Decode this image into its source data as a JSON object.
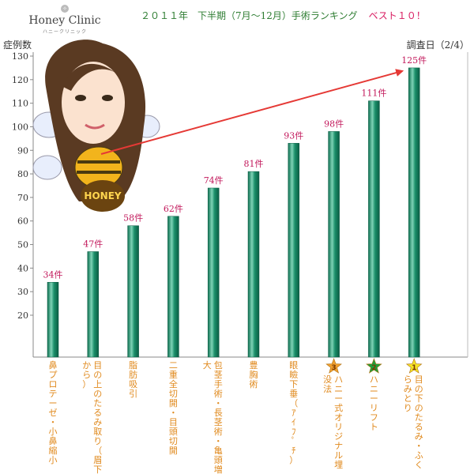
{
  "header": {
    "logo_name": "Honey Clinic",
    "logo_sub": "ハニークリニック",
    "title": "２０１１年　下半期（7月～12月）手術ランキング",
    "title_best": "ベスト１０！"
  },
  "colors": {
    "bar_fill": "#1b8f6a",
    "bar_highlight": "#7fd3b6",
    "value_label": "#c2185b",
    "category_label": "#e08a1e",
    "arrow": "#e53935",
    "star_gold": "#f4e425",
    "star_green": "#1e9e3a",
    "star_orange": "#f0a030"
  },
  "chart_data": {
    "type": "bar",
    "ylabel": "症例数",
    "annotation_top_right": "調査日（2/4）",
    "ylim": [
      0,
      130
    ],
    "yticks": [
      20,
      30,
      40,
      50,
      60,
      70,
      80,
      90,
      100,
      110,
      120,
      130
    ],
    "categories": [
      "鼻プロテーゼ・小鼻縮小",
      "目の上のたるみ取り（眉下から）",
      "脂肪吸引",
      "二重全切開・目頭切開",
      "包茎手術・長茎術・亀頭増大",
      "豊胸術",
      "眼瞼下垂（ｱｲﾌﾟﾁ）",
      "ハニー式オリジナル埋没法",
      "ハニーリフト",
      "目の下のたるみ・ふくらみとり"
    ],
    "values": [
      34,
      47,
      58,
      62,
      74,
      81,
      93,
      98,
      111,
      125
    ],
    "value_labels": [
      "34件",
      "47件",
      "58件",
      "62件",
      "74件",
      "81件",
      "93件",
      "98件",
      "111件",
      "125件"
    ],
    "ranks": [
      {
        "category_index": 9,
        "rank": "1",
        "color": "star_gold"
      },
      {
        "category_index": 8,
        "rank": "2",
        "color": "star_green"
      },
      {
        "category_index": 7,
        "rank": "3",
        "color": "star_orange"
      }
    ],
    "grid": false,
    "legend": "none"
  },
  "mascot": {
    "badge_text": "HONEY"
  }
}
